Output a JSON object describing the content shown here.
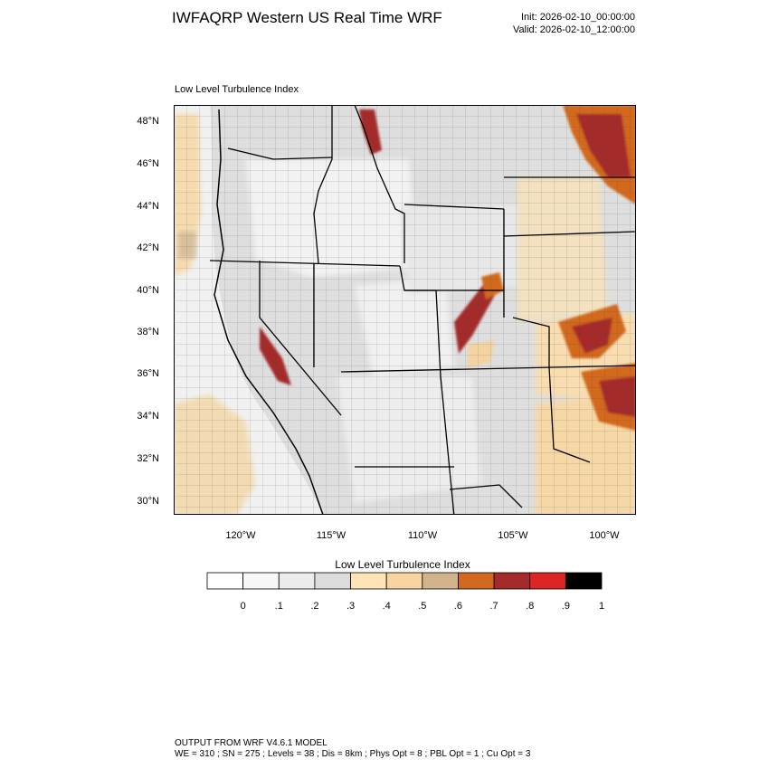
{
  "header": {
    "title": "IWFAQRP Western US Real Time WRF",
    "init": "Init: 2026-02-10_00:00:00",
    "valid": "Valid: 2026-02-10_12:00:00"
  },
  "plot": {
    "subtitle": "Low Level Turbulence Index",
    "lat_labels": [
      "48°N",
      "46°N",
      "44°N",
      "42°N",
      "40°N",
      "38°N",
      "36°N",
      "34°N",
      "32°N",
      "30°N"
    ],
    "lon_labels": [
      "120°W",
      "115°W",
      "110°W",
      "105°W",
      "100°W"
    ]
  },
  "colorbar": {
    "title": "Low Level Turbulence Index",
    "labels": [
      "0",
      ".1",
      ".2",
      ".3",
      ".4",
      ".5",
      ".6",
      ".7",
      ".8",
      ".9",
      "1"
    ],
    "colors": [
      "#ffffff",
      "#f7f7f7",
      "#ececec",
      "#dcdcdc",
      "#ffe4b5",
      "#f8d4a0",
      "#d2b48c",
      "#d2691e",
      "#a52a2a",
      "#dc2626",
      "#000000"
    ]
  },
  "footer": {
    "line1": "OUTPUT FROM WRF V4.6.1 MODEL",
    "line2": "WE = 310 ; SN = 275 ; Levels = 38 ; Dis = 8km ; Phys Opt = 8 ; PBL Opt = 1 ; Cu Opt = 3"
  }
}
